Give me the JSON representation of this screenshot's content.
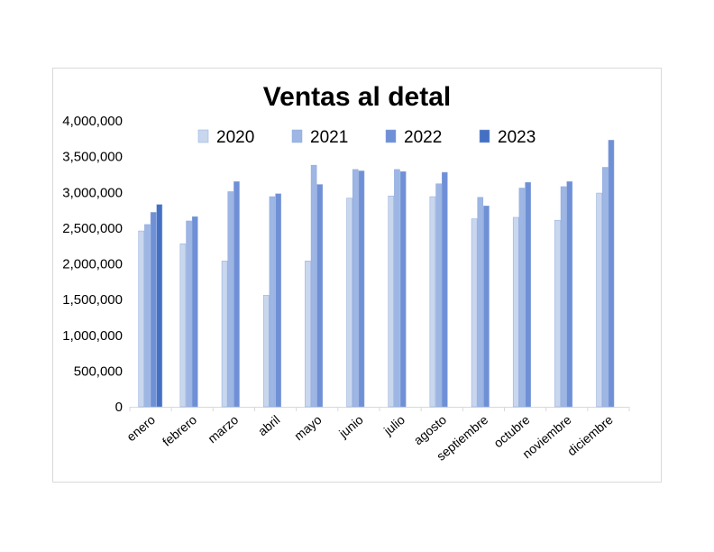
{
  "chart_data": {
    "type": "bar",
    "title": "Ventas al detal",
    "xlabel": "",
    "ylabel": "",
    "ylim": [
      0,
      4000000
    ],
    "yticks": [
      0,
      500000,
      1000000,
      1500000,
      2000000,
      2500000,
      3000000,
      3500000,
      4000000
    ],
    "ytick_labels": [
      "0",
      "500,000",
      "1,000,000",
      "1,500,000",
      "2,000,000",
      "2,500,000",
      "3,000,000",
      "3,500,000",
      "4,000,000"
    ],
    "grid": false,
    "legend_position": "top",
    "categories": [
      "enero",
      "febrero",
      "marzo",
      "abril",
      "mayo",
      "junio",
      "julio",
      "agosto",
      "septiembre",
      "octubre",
      "noviembre",
      "diciembre"
    ],
    "series": [
      {
        "name": "2020",
        "color": "#c9d7ee",
        "values": [
          2460000,
          2280000,
          2040000,
          1560000,
          2040000,
          2920000,
          2950000,
          2940000,
          2630000,
          2650000,
          2610000,
          2990000
        ]
      },
      {
        "name": "2021",
        "color": "#9db6e3",
        "values": [
          2550000,
          2600000,
          3010000,
          2940000,
          3380000,
          3320000,
          3320000,
          3120000,
          2930000,
          3060000,
          3080000,
          3350000
        ]
      },
      {
        "name": "2022",
        "color": "#6f90d6",
        "values": [
          2720000,
          2660000,
          3150000,
          2980000,
          3110000,
          3300000,
          3290000,
          3280000,
          2810000,
          3140000,
          3150000,
          3730000
        ]
      },
      {
        "name": "2023",
        "color": "#4470c4",
        "values": [
          2830000,
          null,
          null,
          null,
          null,
          null,
          null,
          null,
          null,
          null,
          null,
          null
        ]
      }
    ]
  }
}
